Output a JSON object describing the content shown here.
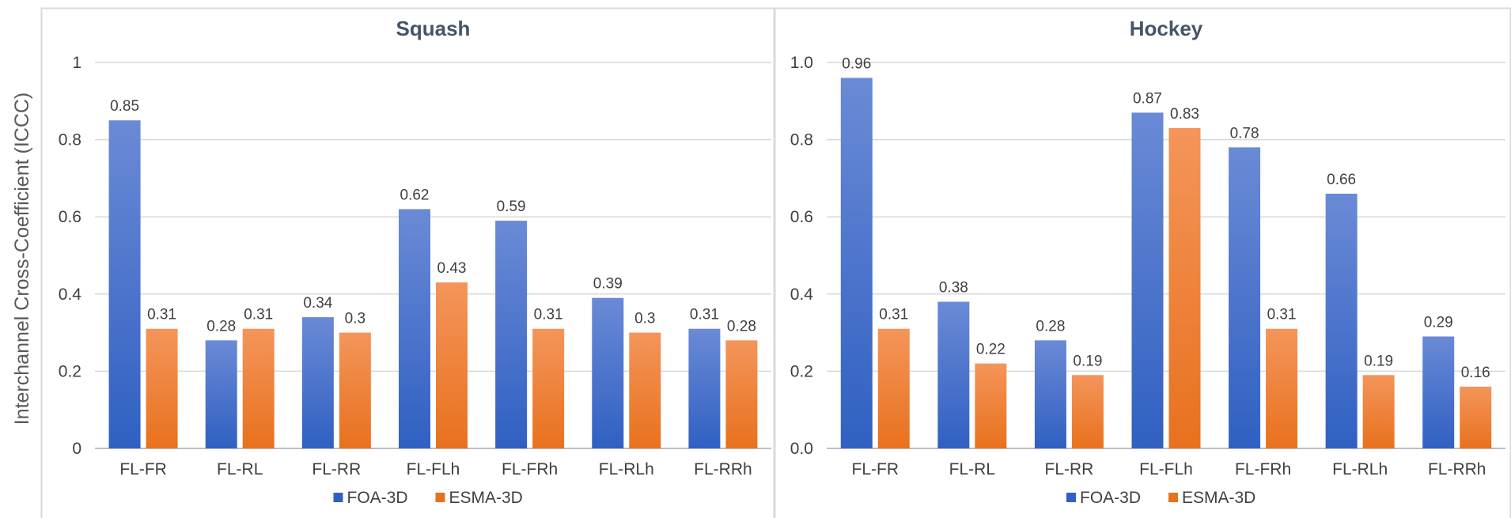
{
  "y_axis_title": "Interchannel Cross-Coefficient (ICCC)",
  "chart_data": [
    {
      "type": "bar",
      "title": "Squash",
      "categories": [
        "FL-FR",
        "FL-RL",
        "FL-RR",
        "FL-FLh",
        "FL-FRh",
        "FL-RLh",
        "FL-RRh"
      ],
      "series": [
        {
          "name": "FOA-3D",
          "values": [
            0.85,
            0.28,
            0.34,
            0.62,
            0.59,
            0.39,
            0.31
          ],
          "labels": [
            "0.85",
            "0.28",
            "0.34",
            "0.62",
            "0.59",
            "0.39",
            "0.31"
          ]
        },
        {
          "name": "ESMA-3D",
          "values": [
            0.31,
            0.31,
            0.3,
            0.43,
            0.31,
            0.3,
            0.28
          ],
          "labels": [
            "0.31",
            "0.31",
            "0.3",
            "0.43",
            "0.31",
            "0.3",
            "0.28"
          ]
        }
      ],
      "ylim": [
        0,
        1
      ],
      "yticks": [
        "0",
        "0.2",
        "0.4",
        "0.6",
        "0.8",
        "1"
      ],
      "grid": true,
      "legend": "bottom"
    },
    {
      "type": "bar",
      "title": "Hockey",
      "categories": [
        "FL-FR",
        "FL-RL",
        "FL-RR",
        "FL-FLh",
        "FL-FRh",
        "FL-RLh",
        "FL-RRh"
      ],
      "series": [
        {
          "name": "FOA-3D",
          "values": [
            0.96,
            0.38,
            0.28,
            0.87,
            0.78,
            0.66,
            0.29
          ],
          "labels": [
            "0.96",
            "0.38",
            "0.28",
            "0.87",
            "0.78",
            "0.66",
            "0.29"
          ]
        },
        {
          "name": "ESMA-3D",
          "values": [
            0.31,
            0.22,
            0.19,
            0.83,
            0.31,
            0.19,
            0.16
          ],
          "labels": [
            "0.31",
            "0.22",
            "0.19",
            "0.83",
            "0.31",
            "0.19",
            "0.16"
          ]
        }
      ],
      "ylim": [
        0,
        1
      ],
      "yticks": [
        "0.0",
        "0.2",
        "0.4",
        "0.6",
        "0.8",
        "1.0"
      ],
      "grid": true,
      "legend": "bottom"
    }
  ],
  "colors": {
    "foa_top": "#6a8ad6",
    "foa_bottom": "#3060c2",
    "esma_top": "#f4955a",
    "esma_bottom": "#e8711e",
    "grid": "#d9d9d9",
    "axis": "#bfbfbf",
    "border": "#d9d9d9"
  }
}
